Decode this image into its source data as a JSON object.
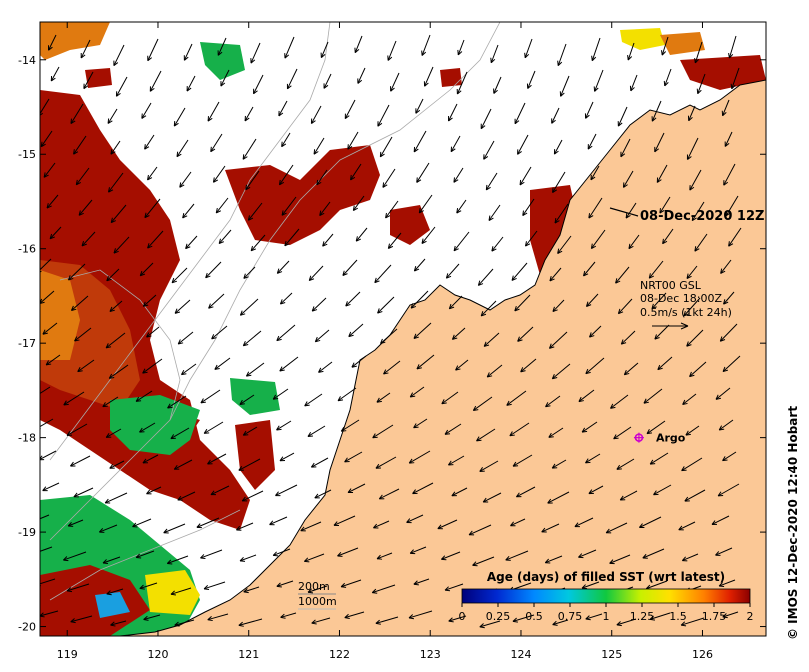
{
  "map": {
    "lon_range": [
      118.7,
      126.7
    ],
    "lat_range": [
      -20.1,
      -13.6
    ],
    "lon_ticks": [
      "119",
      "120",
      "121",
      "122",
      "123",
      "124",
      "125",
      "126"
    ],
    "lat_ticks": [
      "-14",
      "-15",
      "-16",
      "-17",
      "-18",
      "-19",
      "-20"
    ]
  },
  "timestamp_label": "08-Dec-2020 12Z",
  "wind_legend": {
    "line1": "NRT00 GSL",
    "line2": "08-Dec 18:00Z",
    "line3": "0.5m/s (1kt 24h)"
  },
  "argo": {
    "label": "Argo",
    "lon": 125.3,
    "lat": -18.0,
    "color": "#cc00cc"
  },
  "isobath": {
    "label1": "200m",
    "label2": "1000m"
  },
  "colorbar": {
    "title": "Age (days) of filled SST (wrt latest)",
    "ticks": [
      "0",
      "0.25",
      "0.5",
      "0.75",
      "1",
      "1.25",
      "1.5",
      "1.75",
      "2"
    ]
  },
  "credit": "© IMOS 12-Dec-2020 12:40 Hobart",
  "colors": {
    "land": "#fbc896",
    "age_2": "#a50e00",
    "age_175": "#c03a0a",
    "age_15": "#e07a10",
    "age_1": "#16b04a",
    "age_125": "#f3e000",
    "age_05": "#1a9fe0"
  }
}
